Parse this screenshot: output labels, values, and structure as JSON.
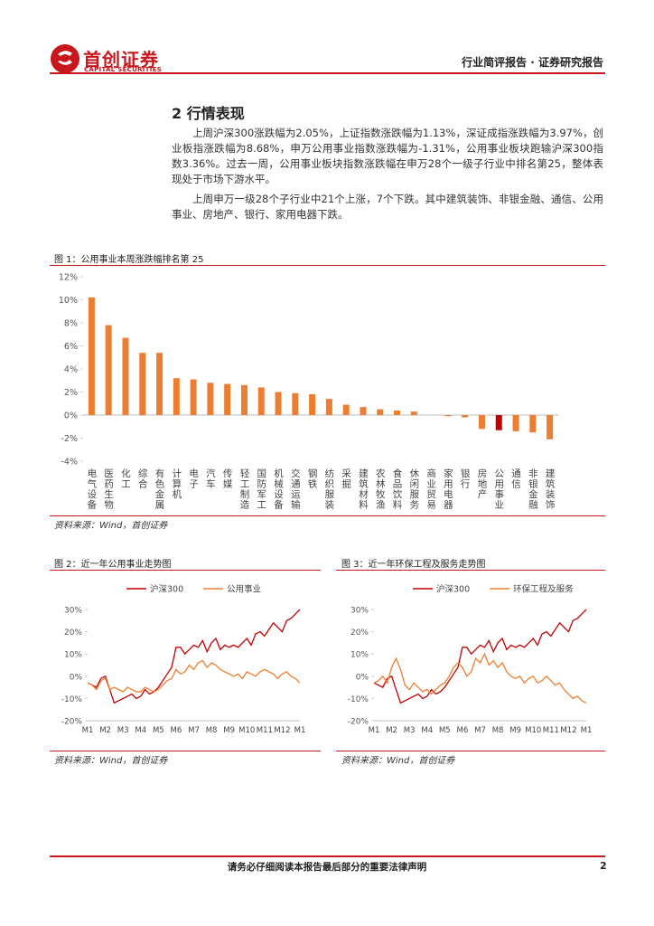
{
  "header": {
    "brand": "首创证券",
    "brand_en": "CAPITAL SECURITIES",
    "report_type": "行业简评报告 · 证券研究报告"
  },
  "section": {
    "title": "2 行情表现",
    "paragraphs": [
      "上周沪深300涨跌幅为2.05%，上证指数涨跌幅为1.13%，深证成指涨跌幅为3.97%，创业板指涨跌幅为8.68%，申万公用事业指数涨跌幅为-1.31%，公用事业板块跑输沪深300指数3.36%。过去一周，公用事业板块指数涨跌幅在申万28个一级子行业中排名第25，整体表现处于市场下游水平。",
      "上周申万一级28个子行业中21个上涨，7个下跌。其中建筑装饰、非银金融、通信、公用事业、房地产、银行、家用电器下跌。"
    ]
  },
  "figures": [
    {
      "caption": "图 1：公用事业本周涨跌幅排名第 25",
      "source": "资料来源：Wind，首创证券",
      "chart": {
        "type": "bar",
        "categories": [
          "电气设备",
          "医药生物",
          "化工",
          "综合",
          "有色金属",
          "计算机",
          "电子",
          "汽车",
          "传媒",
          "轻工制造",
          "国防军工",
          "机械设备",
          "交通运输",
          "钢铁",
          "纺织服装",
          "采掘",
          "建筑材料",
          "农林牧渔",
          "食品饮料",
          "休闲服务",
          "商业贸易",
          "家用电器",
          "银行",
          "房地产",
          "公用事业",
          "通信",
          "非银金融",
          "建筑装饰"
        ],
        "values": [
          10.2,
          7.8,
          6.7,
          5.4,
          5.4,
          3.2,
          3.1,
          2.8,
          2.7,
          2.6,
          2.4,
          2.0,
          1.9,
          1.8,
          1.4,
          0.9,
          0.7,
          0.5,
          0.4,
          0.3,
          0,
          -0.1,
          -0.2,
          -1.2,
          -1.31,
          -1.4,
          -1.5,
          -2.1
        ],
        "colors": [
          "#ed7d31",
          "#ed7d31",
          "#ed7d31",
          "#ed7d31",
          "#ed7d31",
          "#ed7d31",
          "#ed7d31",
          "#ed7d31",
          "#ed7d31",
          "#ed7d31",
          "#ed7d31",
          "#ed7d31",
          "#ed7d31",
          "#ed7d31",
          "#ed7d31",
          "#ed7d31",
          "#ed7d31",
          "#ed7d31",
          "#ed7d31",
          "#ed7d31",
          "#ed7d31",
          "#ed7d31",
          "#ed7d31",
          "#ed7d31",
          "#c00000",
          "#ed7d31",
          "#ed7d31",
          "#ed7d31"
        ],
        "ylim": [
          -4,
          12
        ],
        "yticks": [
          {
            "value": -4,
            "label": "-4%"
          },
          {
            "value": -2,
            "label": "-2%"
          },
          {
            "value": 0,
            "label": "0%"
          },
          {
            "value": 2,
            "label": "2%"
          },
          {
            "value": 4,
            "label": "4%"
          },
          {
            "value": 6,
            "label": "6%"
          },
          {
            "value": 8,
            "label": "8%"
          },
          {
            "value": 10,
            "label": "10%"
          },
          {
            "value": 12,
            "label": "12%"
          }
        ],
        "grid": false
      }
    },
    {
      "caption": "图 2：近一年公用事业走势图",
      "source": "资料来源：Wind，首创证券",
      "chart": {
        "type": "line",
        "categories": [
          "M1",
          null,
          null,
          null,
          "M2",
          null,
          null,
          null,
          "M3",
          null,
          null,
          null,
          "M4",
          null,
          null,
          null,
          "M5",
          null,
          null,
          null,
          "M6",
          null,
          null,
          null,
          "M7",
          null,
          null,
          null,
          "M8",
          null,
          null,
          null,
          "M9",
          null,
          null,
          null,
          "M10",
          null,
          null,
          null,
          "M11",
          null,
          null,
          null,
          "M12",
          null,
          null,
          null,
          "M1"
        ],
        "series": [
          {
            "name": "沪深300",
            "color": "#c00000",
            "values": [
              -3,
              -4,
              -5,
              -1,
              0,
              -6,
              -12,
              -11,
              -10,
              -9,
              -8,
              -10,
              -9,
              -6,
              -8,
              -7,
              -5,
              -2,
              1,
              4,
              13,
              13,
              10,
              12,
              14,
              13,
              16,
              11,
              15,
              17,
              12,
              14,
              13,
              14,
              13,
              15,
              17,
              14,
              19,
              20,
              18,
              21,
              24,
              22,
              20,
              25,
              26,
              28,
              30
            ]
          },
          {
            "name": "公用事业",
            "color": "#ed7d31",
            "values": [
              -3,
              -4,
              -6,
              -2,
              -1,
              -6,
              -5,
              -6,
              -7,
              -5,
              -6,
              -7,
              -7,
              -5,
              -6,
              -7,
              -6,
              -4,
              -2,
              -1,
              3,
              1,
              2,
              5,
              3,
              6,
              7,
              4,
              6,
              5,
              3,
              2,
              1,
              0,
              1,
              -1,
              2,
              1,
              0,
              2,
              3,
              2,
              1,
              -1,
              1,
              2,
              0,
              -1,
              -3
            ]
          }
        ],
        "ylim": [
          -20,
          30
        ],
        "yticks": [
          {
            "value": -20,
            "label": "-20%"
          },
          {
            "value": -10,
            "label": "-10%"
          },
          {
            "value": 0,
            "label": "0%"
          },
          {
            "value": 10,
            "label": "10%"
          },
          {
            "value": 20,
            "label": "20%"
          },
          {
            "value": 30,
            "label": "30%"
          }
        ],
        "grid": false,
        "legend": "top"
      }
    },
    {
      "caption": "图 3：近一年环保工程及服务走势图",
      "source": "资料来源：Wind，首创证券",
      "chart": {
        "type": "line",
        "categories": [
          "M1",
          null,
          null,
          null,
          "M2",
          null,
          null,
          null,
          "M3",
          null,
          null,
          null,
          "M4",
          null,
          null,
          null,
          "M5",
          null,
          null,
          null,
          "M6",
          null,
          null,
          null,
          "M7",
          null,
          null,
          null,
          "M8",
          null,
          null,
          null,
          "M9",
          null,
          null,
          null,
          "M10",
          null,
          null,
          null,
          "M11",
          null,
          null,
          null,
          "M12",
          null,
          null,
          null,
          "M1"
        ],
        "series": [
          {
            "name": "沪深300",
            "color": "#c00000",
            "values": [
              -3,
              -4,
              -5,
              -1,
              0,
              -6,
              -12,
              -11,
              -10,
              -9,
              -8,
              -10,
              -9,
              -6,
              -8,
              -7,
              -5,
              -2,
              1,
              4,
              13,
              13,
              10,
              12,
              14,
              13,
              16,
              11,
              15,
              17,
              12,
              14,
              13,
              14,
              13,
              15,
              17,
              14,
              19,
              20,
              18,
              21,
              24,
              22,
              20,
              25,
              26,
              28,
              30
            ]
          },
          {
            "name": "环保工程及服务",
            "color": "#ed7d31",
            "values": [
              -3,
              -2,
              0,
              -3,
              4,
              8,
              3,
              -4,
              -6,
              -3,
              -5,
              -7,
              -6,
              -8,
              -6,
              -4,
              -3,
              0,
              4,
              6,
              4,
              0,
              2,
              8,
              6,
              10,
              5,
              7,
              4,
              6,
              2,
              0,
              -1,
              0,
              -3,
              -1,
              0,
              -3,
              -2,
              0,
              -2,
              -4,
              -3,
              -6,
              -8,
              -10,
              -9,
              -11,
              -12
            ]
          }
        ],
        "ylim": [
          -20,
          30
        ],
        "yticks": [
          {
            "value": -20,
            "label": "-20%"
          },
          {
            "value": -10,
            "label": "-10%"
          },
          {
            "value": 0,
            "label": "0%"
          },
          {
            "value": 10,
            "label": "10%"
          },
          {
            "value": 20,
            "label": "20%"
          },
          {
            "value": 30,
            "label": "30%"
          }
        ],
        "grid": false,
        "legend": "top"
      }
    }
  ],
  "footer": {
    "disclaimer": "请务必仔细阅读本报告最后部分的重要法律声明",
    "page": 2
  }
}
